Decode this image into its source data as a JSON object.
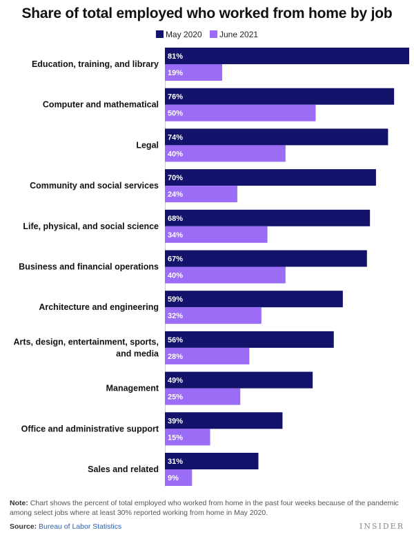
{
  "chart_data": {
    "type": "bar",
    "orientation": "horizontal",
    "title": "Share of total employed who worked from home by job",
    "categories": [
      "Education, training, and library",
      "Computer and mathematical",
      "Legal",
      "Community and social services",
      "Life, physical, and social science",
      "Business and financial operations",
      "Architecture and engineering",
      "Arts, design, entertainment, sports, and media",
      "Management",
      "Office and administrative support",
      "Sales and related"
    ],
    "series": [
      {
        "name": "May 2020",
        "color": "#14136b",
        "values": [
          81,
          76,
          74,
          70,
          68,
          67,
          59,
          56,
          49,
          39,
          31
        ]
      },
      {
        "name": "June 2021",
        "color": "#9b6cf5",
        "values": [
          19,
          50,
          40,
          24,
          34,
          40,
          32,
          28,
          25,
          15,
          9
        ]
      }
    ],
    "value_suffix": "%",
    "xlim": [
      0,
      81
    ],
    "legend_position": "top-center"
  },
  "note": {
    "label": "Note:",
    "text": "Chart shows the percent of total employed who worked from home in the past four weeks because of the pandemic among select jobs where at least 30% reported working from home in May 2020."
  },
  "source": {
    "label": "Source:",
    "text": "Bureau of Labor Statistics"
  },
  "brand": "INSIDER"
}
